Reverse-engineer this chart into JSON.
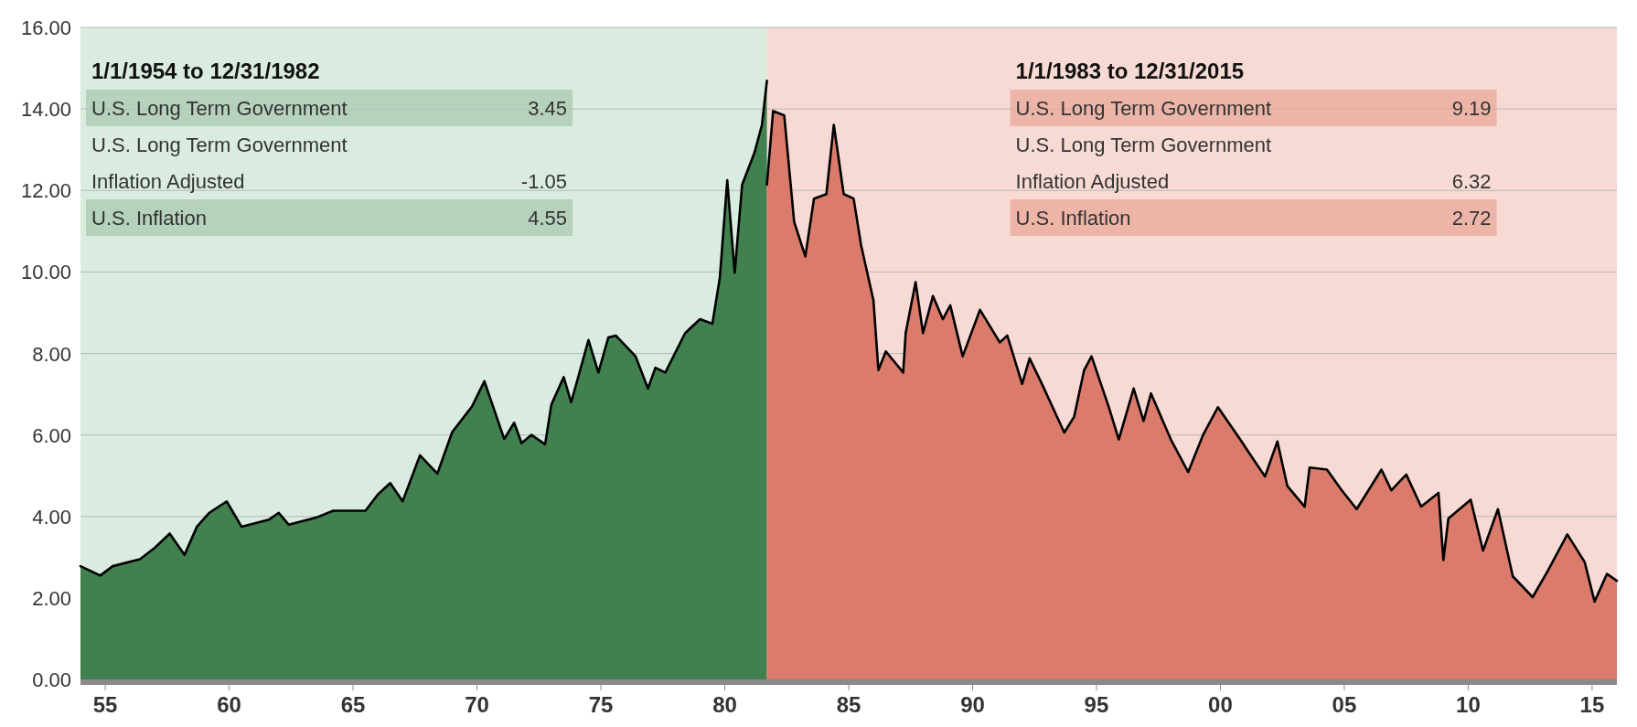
{
  "chart_data": {
    "type": "area",
    "xlim": [
      1954,
      2016
    ],
    "ylim": [
      0,
      16
    ],
    "xticks": [
      {
        "value": 1955,
        "label": "55"
      },
      {
        "value": 1960,
        "label": "60"
      },
      {
        "value": 1965,
        "label": "65"
      },
      {
        "value": 1970,
        "label": "70"
      },
      {
        "value": 1975,
        "label": "75"
      },
      {
        "value": 1980,
        "label": "80"
      },
      {
        "value": 1985,
        "label": "85"
      },
      {
        "value": 1990,
        "label": "90"
      },
      {
        "value": 1995,
        "label": "95"
      },
      {
        "value": 2000,
        "label": "00"
      },
      {
        "value": 2005,
        "label": "05"
      },
      {
        "value": 2010,
        "label": "10"
      },
      {
        "value": 2015,
        "label": "15"
      }
    ],
    "yticks": [
      {
        "value": 0,
        "label": "0.00"
      },
      {
        "value": 2,
        "label": "2.00"
      },
      {
        "value": 4,
        "label": "4.00"
      },
      {
        "value": 6,
        "label": "6.00"
      },
      {
        "value": 8,
        "label": "8.00"
      },
      {
        "value": 10,
        "label": "10.00"
      },
      {
        "value": 12,
        "label": "12.00"
      },
      {
        "value": 14,
        "label": "14.00"
      },
      {
        "value": 16,
        "label": "16.00"
      }
    ],
    "grid": "y",
    "bands": [
      {
        "axis": "x",
        "from": 1954,
        "to": 1981.7,
        "color": "#d9ecdf"
      },
      {
        "axis": "x",
        "from": 1981.7,
        "to": 2016,
        "color": "#f7dad3"
      }
    ],
    "series": [
      {
        "color": "#41804f",
        "x": [
          1954,
          1954.8,
          1955.3,
          1956.4,
          1957,
          1957.6,
          1958.2,
          1958.7,
          1959.2,
          1959.9,
          1960.5,
          1961.6,
          1962,
          1962.4,
          1963.5,
          1964.2,
          1965.5,
          1966,
          1966.5,
          1967,
          1967.7,
          1968.4,
          1969,
          1969.8,
          1970.3,
          1971.1,
          1971.5,
          1971.8,
          1972.2,
          1972.75,
          1973,
          1973.5,
          1973.8,
          1974.5,
          1974.9,
          1975.3,
          1975.6,
          1976.4,
          1976.9,
          1977.2,
          1977.6,
          1978.4,
          1979,
          1979.5,
          1979.8,
          1980.1,
          1980.4,
          1980.7,
          1981.2,
          1981.5,
          1981.7
        ],
        "values": [
          2.78,
          2.55,
          2.78,
          2.95,
          3.23,
          3.58,
          3.06,
          3.75,
          4.09,
          4.37,
          3.75,
          3.92,
          4.09,
          3.8,
          3.97,
          4.14,
          4.14,
          4.54,
          4.82,
          4.37,
          5.5,
          5.05,
          6.07,
          6.7,
          7.32,
          5.9,
          6.3,
          5.8,
          6,
          5.77,
          6.74,
          7.42,
          6.8,
          8.33,
          7.53,
          8.39,
          8.44,
          7.93,
          7.14,
          7.65,
          7.53,
          8.5,
          8.84,
          8.73,
          9.86,
          12.25,
          9.98,
          12.14,
          12.93,
          13.61,
          14.69
        ]
      },
      {
        "color": "#da7b6b",
        "x": [
          1981.7,
          1981.95,
          1982.4,
          1982.8,
          1983.25,
          1983.6,
          1984.1,
          1984.4,
          1984.8,
          1985.2,
          1985.5,
          1986,
          1986.2,
          1986.5,
          1987.2,
          1987.3,
          1987.7,
          1988,
          1988.4,
          1988.8,
          1989.1,
          1989.6,
          1990.3,
          1991.1,
          1991.4,
          1992,
          1992.3,
          1992.8,
          1993.7,
          1994.1,
          1994.5,
          1994.8,
          1995.5,
          1995.9,
          1996.5,
          1996.9,
          1997.2,
          1998,
          1998.7,
          1999.3,
          1999.9,
          2000.8,
          2001.3,
          2001.8,
          2002.3,
          2002.7,
          2003.4,
          2003.6,
          2004.3,
          2004.9,
          2005.5,
          2006.5,
          2006.9,
          2007.5,
          2008.1,
          2008.8,
          2009,
          2009.2,
          2010.1,
          2010.6,
          2011.2,
          2011.8,
          2012.6,
          2013.2,
          2014,
          2014.7,
          2015.1,
          2015.6,
          2016
        ],
        "values": [
          12.14,
          13.95,
          13.84,
          11.23,
          10.38,
          11.8,
          11.91,
          13.61,
          11.91,
          11.8,
          10.66,
          9.3,
          7.59,
          8.05,
          7.53,
          8.5,
          9.75,
          8.5,
          9.41,
          8.84,
          9.18,
          7.93,
          9.07,
          8.27,
          8.44,
          7.25,
          7.88,
          7.25,
          6.06,
          6.45,
          7.59,
          7.93,
          6.68,
          5.89,
          7.14,
          6.34,
          7.02,
          5.89,
          5.09,
          6,
          6.68,
          5.89,
          5.43,
          4.98,
          5.84,
          4.75,
          4.24,
          5.2,
          5.15,
          4.64,
          4.18,
          5.15,
          4.64,
          5.03,
          4.24,
          4.58,
          2.93,
          3.95,
          4.41,
          3.16,
          4.18,
          2.53,
          2.02,
          2.65,
          3.56,
          2.88,
          1.91,
          2.59,
          2.42
        ]
      }
    ],
    "annotations": [
      "1/1/1954 to 12/31/1982",
      "U.S. Long Term Government",
      "3.45",
      "U.S. Long Term Government\nInflation Adjusted",
      "-1.05",
      "U.S. Inflation",
      "4.55",
      "1/1/1983 to 12/31/2015",
      "U.S. Long Term Government",
      "9.19",
      "U.S. Long Term Government\nInflation Adjusted",
      "6.32",
      "U.S. Inflation",
      "2.72"
    ]
  }
}
